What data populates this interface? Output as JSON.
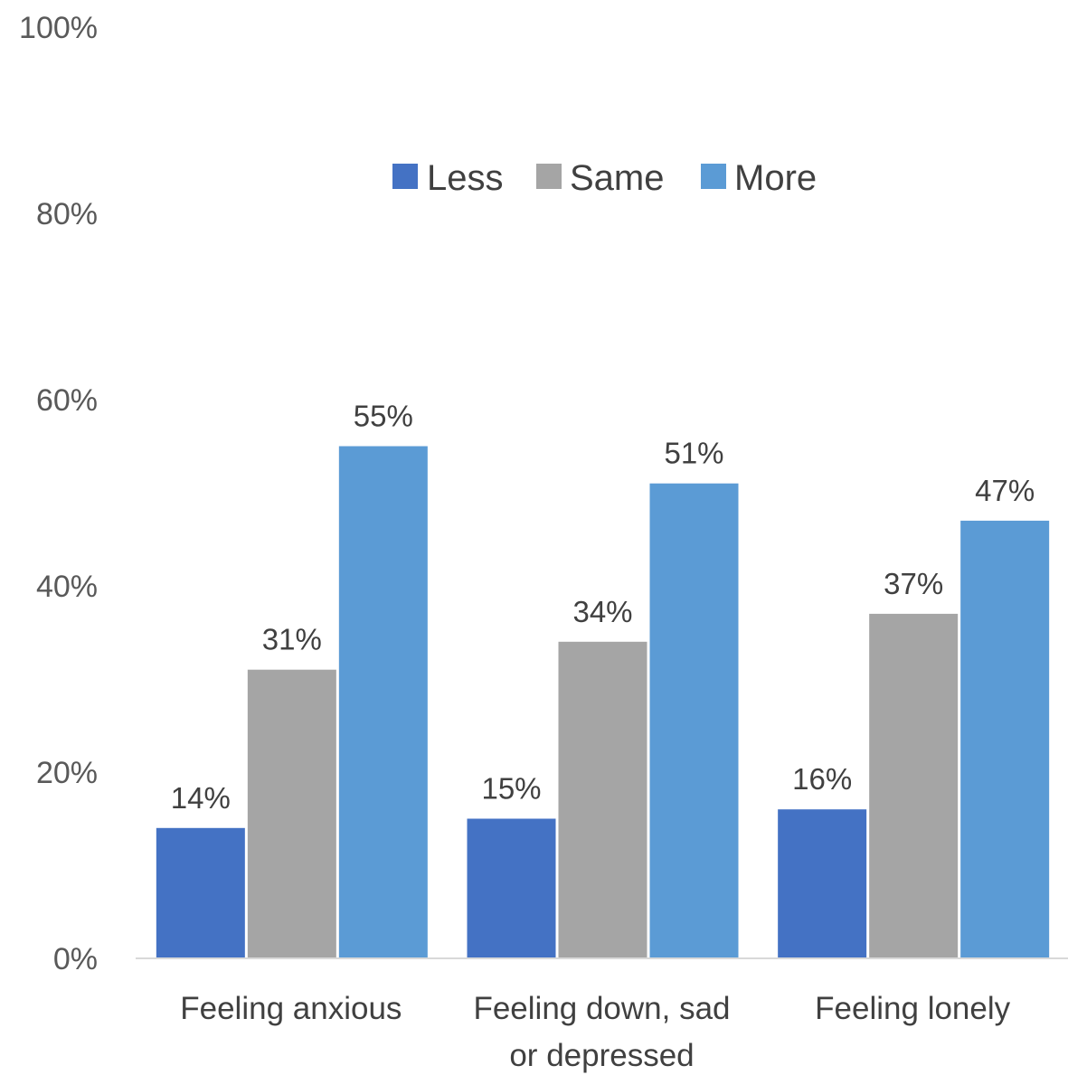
{
  "chart_data": {
    "type": "bar",
    "categories": [
      "Feeling anxious",
      [
        "Feeling down, sad",
        "or depressed"
      ],
      "Feeling lonely"
    ],
    "series": [
      {
        "name": "Less",
        "values": [
          14,
          15,
          16
        ],
        "color": "#4472C4"
      },
      {
        "name": "Same",
        "values": [
          31,
          34,
          37
        ],
        "color": "#A5A5A5"
      },
      {
        "name": "More",
        "values": [
          55,
          51,
          47
        ],
        "color": "#5B9BD5"
      }
    ],
    "data_labels": [
      [
        "14%",
        "15%",
        "16%"
      ],
      [
        "31%",
        "34%",
        "37%"
      ],
      [
        "55%",
        "51%",
        "47%"
      ]
    ],
    "y_ticks": [
      "0%",
      "20%",
      "40%",
      "60%",
      "80%",
      "100%"
    ],
    "ylim": [
      0,
      100
    ],
    "title": "",
    "xlabel": "",
    "ylabel": "",
    "legend_position": "top",
    "grid": false,
    "axis_color": "#D9D9D9"
  }
}
